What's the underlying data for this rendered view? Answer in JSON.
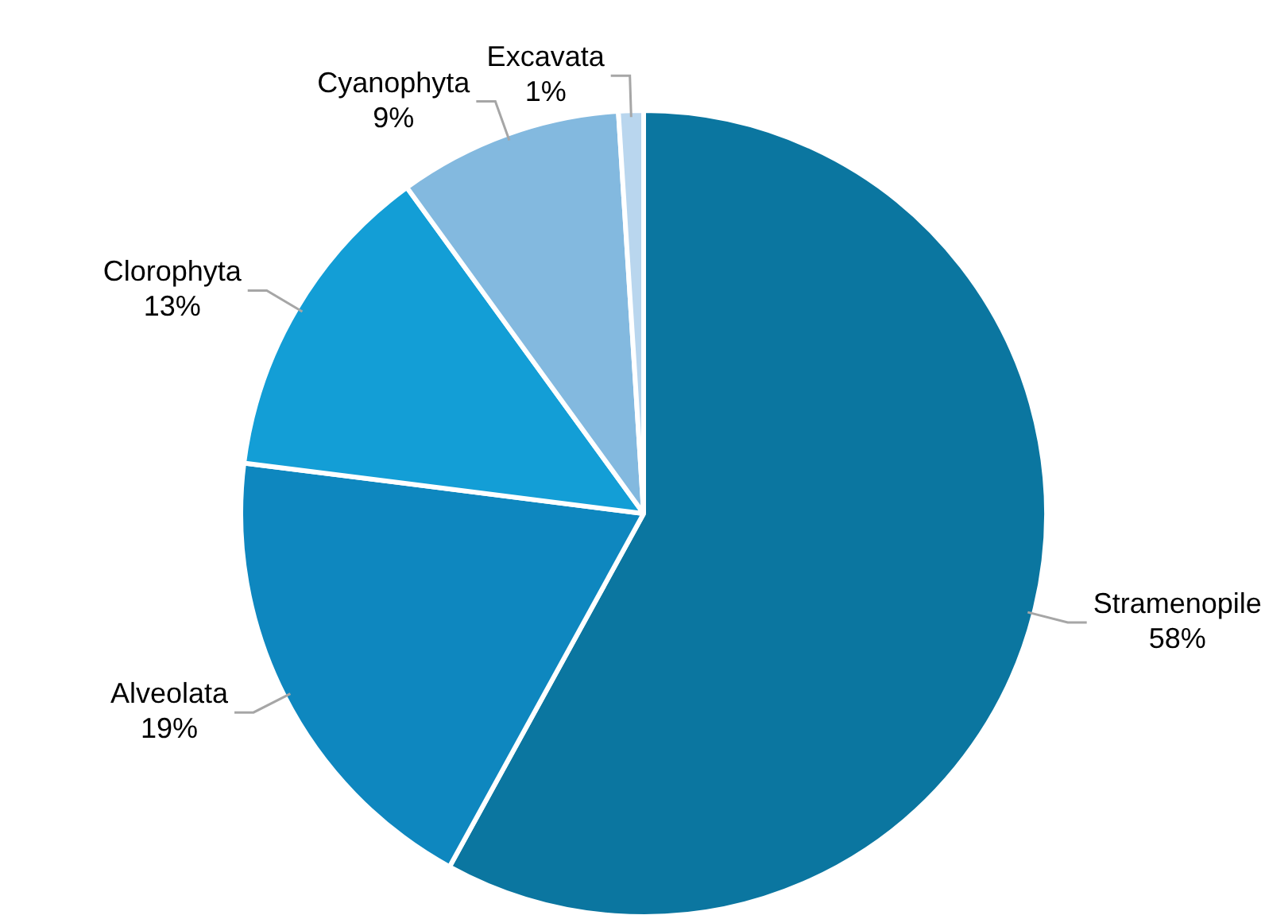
{
  "chart_data": {
    "type": "pie",
    "categories": [
      "Stramenopile",
      "Alveolata",
      "Clorophyta",
      "Cyanophyta",
      "Excavata"
    ],
    "values": [
      58,
      19,
      13,
      9,
      1
    ],
    "value_labels": [
      "58%",
      "19%",
      "13%",
      "9%",
      "1%"
    ],
    "colors": [
      "#0b76a0",
      "#0e87bf",
      "#139ed6",
      "#83b9df",
      "#b9d6ee"
    ],
    "legend": false
  }
}
